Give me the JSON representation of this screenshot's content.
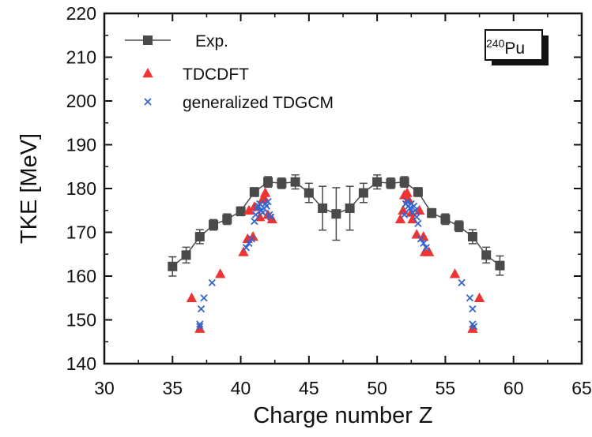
{
  "chart_data": {
    "type": "scatter",
    "xlabel": "Charge number Z",
    "ylabel": "TKE [MeV]",
    "xlim": [
      30,
      65
    ],
    "ylim": [
      140,
      220
    ],
    "xticks": [
      30,
      35,
      40,
      45,
      50,
      55,
      60,
      65
    ],
    "yticks": [
      140,
      150,
      160,
      170,
      180,
      190,
      200,
      210,
      220
    ],
    "legend_position": "top-left",
    "annotation": {
      "sup": "240",
      "text": "Pu"
    },
    "series": [
      {
        "name": "Exp.",
        "marker": "square-line",
        "color": "#4a4a4a",
        "x": [
          35,
          36,
          37,
          38,
          39,
          40,
          41,
          42,
          43,
          44,
          45,
          46,
          47,
          48,
          49,
          50,
          51,
          52,
          53,
          54,
          55,
          56,
          57,
          58,
          59
        ],
        "y": [
          162.2,
          164.8,
          169.0,
          171.7,
          173.0,
          174.8,
          179.2,
          181.5,
          181.2,
          181.5,
          179.0,
          175.5,
          174.2,
          175.5,
          179.0,
          181.5,
          181.2,
          181.5,
          179.2,
          174.4,
          173.0,
          171.4,
          169.0,
          164.8,
          162.4
        ],
        "err": [
          2.2,
          1.8,
          1.6,
          1.2,
          1.2,
          1.0,
          1.0,
          1.2,
          1.2,
          1.6,
          2.2,
          5.0,
          6.0,
          5.0,
          2.2,
          1.6,
          1.2,
          1.2,
          1.0,
          1.0,
          1.2,
          1.2,
          1.6,
          1.8,
          2.2
        ]
      },
      {
        "name": "TDCDFT",
        "marker": "triangle",
        "color": "#ee3333",
        "x": [
          36.4,
          37.0,
          38.5,
          40.2,
          40.5,
          40.6,
          40.9,
          41.0,
          41.4,
          41.6,
          41.7,
          41.8,
          42.0,
          42.3,
          51.7,
          51.9,
          52.0,
          52.2,
          52.3,
          52.5,
          52.6,
          52.9,
          53.1,
          53.4,
          53.5,
          53.8,
          55.7,
          57.0,
          57.5
        ],
        "y": [
          155.0,
          148.0,
          160.5,
          165.5,
          168.5,
          175.0,
          169.0,
          175.8,
          173.5,
          177.5,
          178.0,
          179.0,
          174.0,
          173.0,
          173.0,
          175.0,
          178.5,
          179.0,
          177.5,
          174.5,
          173.0,
          169.5,
          175.0,
          169.0,
          165.5,
          165.5,
          160.5,
          148.0,
          155.0
        ]
      },
      {
        "name": "generalized  TDGCM",
        "marker": "cross",
        "color": "#3366cc",
        "x": [
          37.0,
          37.0,
          37.1,
          37.3,
          37.9,
          40.4,
          40.6,
          40.8,
          41.0,
          41.1,
          41.2,
          41.3,
          41.4,
          41.5,
          41.6,
          41.7,
          41.8,
          41.9,
          42.0,
          42.1,
          42.2,
          52.0,
          52.1,
          52.2,
          52.3,
          52.4,
          52.5,
          52.6,
          52.7,
          52.8,
          52.9,
          53.0,
          53.2,
          53.4,
          53.6,
          56.2,
          56.8,
          57.0,
          57.0,
          57.1
        ],
        "y": [
          149.0,
          148.5,
          152.5,
          155.0,
          158.5,
          166.5,
          167.5,
          168.5,
          172.5,
          174.0,
          175.5,
          176.0,
          176.5,
          175.0,
          174.5,
          175.5,
          176.5,
          176.0,
          177.0,
          174.0,
          173.5,
          174.0,
          176.5,
          177.0,
          176.0,
          175.5,
          176.5,
          174.5,
          176.0,
          175.0,
          173.5,
          172.0,
          168.5,
          167.5,
          166.5,
          158.5,
          155.0,
          152.5,
          149.0,
          148.5
        ]
      }
    ]
  }
}
